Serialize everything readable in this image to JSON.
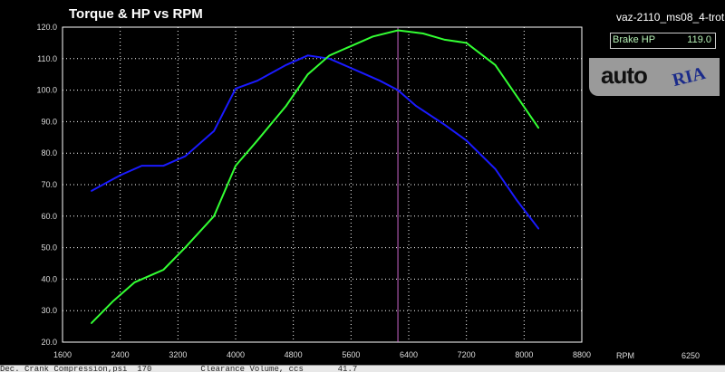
{
  "chart_data": {
    "type": "line",
    "title": "Torque & HP vs RPM",
    "xlabel": "RPM",
    "xlim": [
      1600,
      8800
    ],
    "ylim": [
      20,
      120
    ],
    "xticks": [
      "1600",
      "2400",
      "3200",
      "4000",
      "4800",
      "5600",
      "6400",
      "7200",
      "8000",
      "8800"
    ],
    "yticks": [
      "20.0",
      "30.0",
      "40.0",
      "50.0",
      "60.0",
      "70.0",
      "80.0",
      "90.0",
      "100.0",
      "110.0",
      "120.0"
    ],
    "grid": true,
    "cursor_rpm": "6250",
    "series": [
      {
        "color": "#1a1aff",
        "x": [
          2000,
          2400,
          2700,
          3000,
          3300,
          3700,
          4000,
          4300,
          4700,
          5000,
          5300,
          5700,
          6000,
          6250,
          6500,
          6900,
          7200,
          7600,
          7900,
          8200
        ],
        "y": [
          68,
          73,
          76,
          76,
          79,
          87,
          100.5,
          103,
          108,
          111,
          110,
          106,
          103,
          100,
          95,
          89,
          84,
          75,
          65,
          56
        ]
      },
      {
        "color": "#33ff33",
        "x": [
          2000,
          2300,
          2600,
          3000,
          3300,
          3700,
          4000,
          4300,
          4700,
          5000,
          5300,
          5600,
          5900,
          6250,
          6600,
          6900,
          7200,
          7600,
          7900,
          8200
        ],
        "y": [
          26,
          33,
          39,
          43,
          50,
          60,
          76,
          84,
          95,
          105,
          111,
          114,
          117,
          119,
          118,
          116,
          115,
          108,
          98,
          88
        ]
      }
    ],
    "cursor_color": "#cc66cc"
  },
  "header": {
    "file": "vaz-2110_ms08_4-trot",
    "readout_label": "Brake HP",
    "readout_value": "119.0"
  },
  "logo": {
    "text1": "auto",
    "text2": "RIA"
  },
  "footer": {
    "text": "Dec. Crank Compression,psi  170          Clearance Volume, ccs       41.7"
  }
}
